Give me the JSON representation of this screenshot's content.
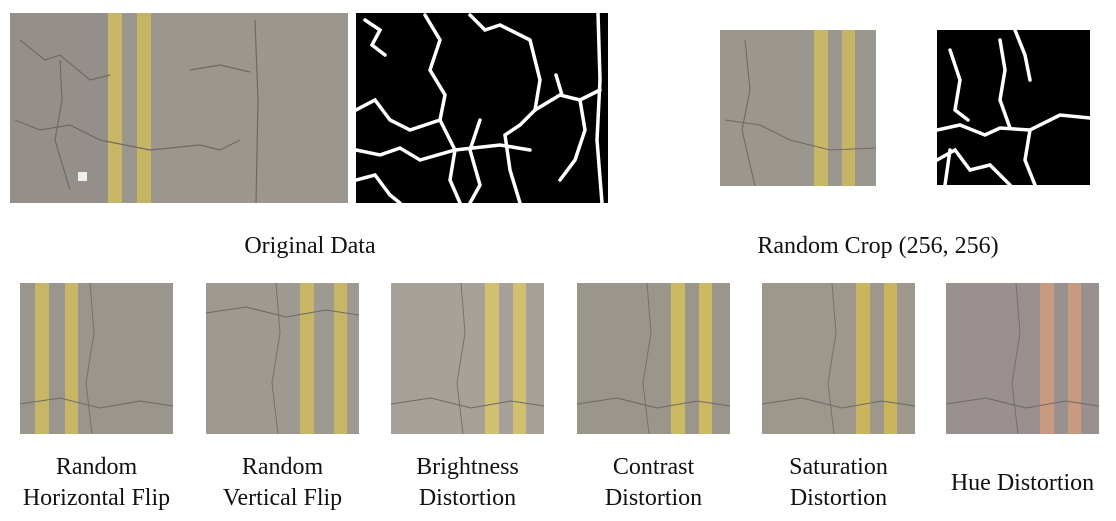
{
  "figure": {
    "top_captions": [
      "Original Data",
      "Random Crop (256, 256)"
    ],
    "augmentations": [
      {
        "lines": [
          "Random",
          "Horizontal Flip"
        ]
      },
      {
        "lines": [
          "Random",
          "Vertical Flip"
        ]
      },
      {
        "lines": [
          "Brightness",
          "Distortion"
        ]
      },
      {
        "lines": [
          "Contrast",
          "Distortion"
        ]
      },
      {
        "lines": [
          "Saturation",
          "Distortion"
        ]
      },
      {
        "lines": [
          "Hue Distortion"
        ]
      }
    ]
  }
}
